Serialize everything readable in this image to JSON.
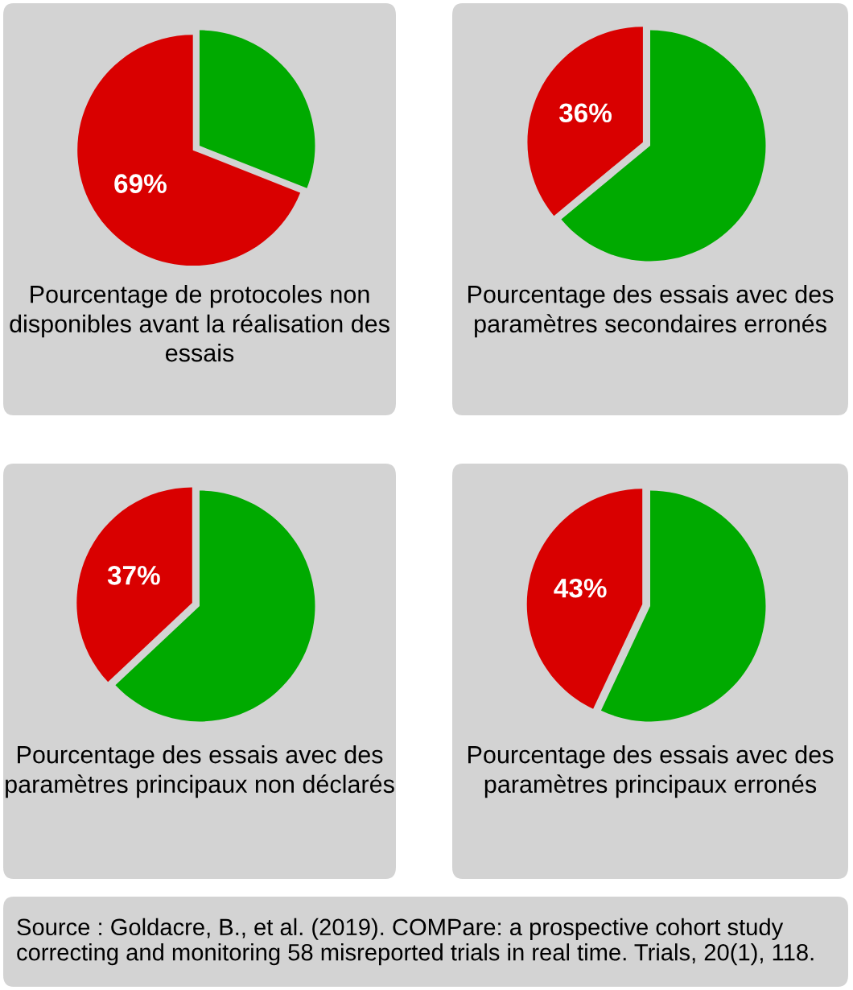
{
  "chart_data": [
    {
      "type": "pie",
      "title": "Pourcentage de protocoles non disponibles avant la réalisation des essais",
      "categories": [
        null,
        null
      ],
      "values": [
        69,
        31
      ],
      "colors": [
        "#d90000",
        "#00aa00"
      ],
      "value_labels": [
        "69%",
        null
      ]
    },
    {
      "type": "pie",
      "title": "Pourcentage des essais avec des paramètres secondaires erronés",
      "categories": [
        null,
        null
      ],
      "values": [
        36,
        64
      ],
      "colors": [
        "#d90000",
        "#00aa00"
      ],
      "value_labels": [
        "36%",
        null
      ]
    },
    {
      "type": "pie",
      "title": "Pourcentage des essais avec des paramètres principaux non déclarés",
      "categories": [
        null,
        null
      ],
      "values": [
        37,
        63
      ],
      "colors": [
        "#d90000",
        "#00aa00"
      ],
      "value_labels": [
        "37%",
        null
      ]
    },
    {
      "type": "pie",
      "title": "Pourcentage des essais avec des paramètres principaux erronés",
      "categories": [
        null,
        null
      ],
      "values": [
        43,
        57
      ],
      "colors": [
        "#d90000",
        "#00aa00"
      ],
      "value_labels": [
        "43%",
        null
      ],
      "annotations": [
        "Source : Goldacre, B., et al. (2019). COMPare: a prospective cohort study correcting and monitoring 58 misreported trials in real time. Trials, 20(1), 118."
      ]
    }
  ]
}
